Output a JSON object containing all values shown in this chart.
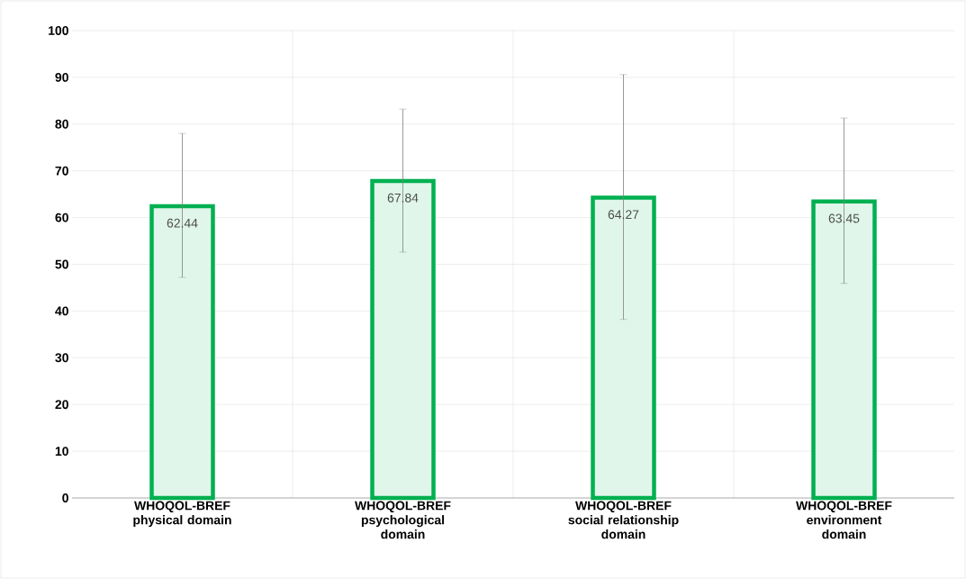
{
  "chart_data": {
    "type": "bar",
    "categories": [
      "WHOQOL-BREF physical domain",
      "WHOQOL-BREF psychological domain",
      "WHOQOL-BREF social relationship domain",
      "WHOQOL-BREF environment domain"
    ],
    "values": [
      62.44,
      67.84,
      64.27,
      63.45
    ],
    "errors": [
      [
        47.2,
        78.0
      ],
      [
        52.6,
        83.2
      ],
      [
        38.2,
        90.6
      ],
      [
        45.9,
        81.3
      ]
    ],
    "color": "#00b050",
    "ylim": [
      0,
      100
    ],
    "yticks": [
      0,
      10,
      20,
      30,
      40,
      50,
      60,
      70,
      80,
      90,
      100
    ],
    "grid": true,
    "data_labels": true
  }
}
